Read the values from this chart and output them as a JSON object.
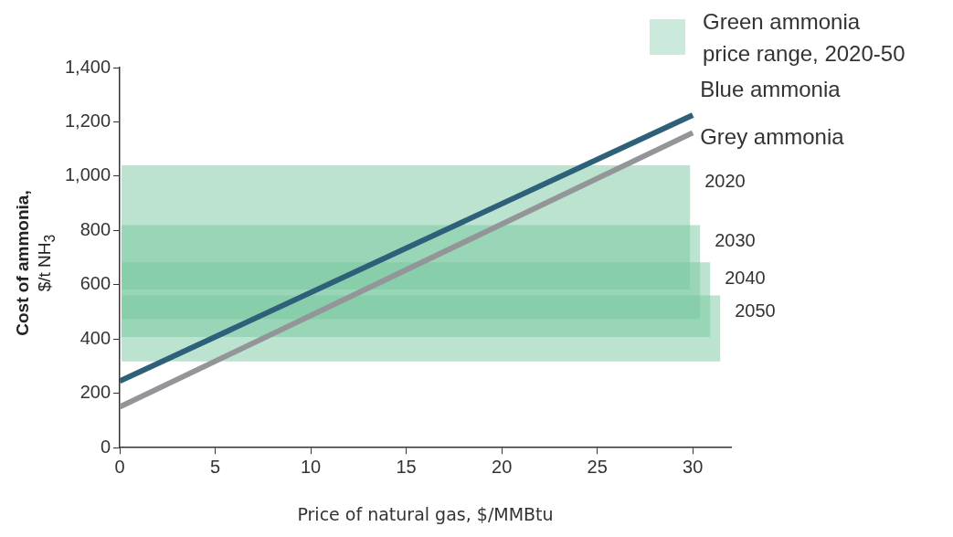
{
  "chart_data": {
    "type": "line",
    "xlabel": "Price of natural gas, $/MMBtu",
    "ylabel": "Cost of ammonia,\n$/t NH$_{3}$",
    "legend_title": "Green ammonia\nprice range, 2020-50",
    "legend": "top right",
    "x": [
      0,
      30
    ],
    "series": [
      {
        "name": "Blue ammonia",
        "color": "#2f6079",
        "values": [
          245,
          1225
        ]
      },
      {
        "name": "Grey ammonia",
        "color": "#939598",
        "values": [
          150,
          1160
        ]
      }
    ],
    "bands": [
      {
        "axis": "y",
        "from": 583,
        "to": 1040,
        "label": "2020",
        "color": "#78c8a0"
      },
      {
        "axis": "y",
        "from": 473,
        "to": 820,
        "label": "2030",
        "color": "#78c8a0"
      },
      {
        "axis": "y",
        "from": 408,
        "to": 683,
        "label": "2040",
        "color": "#78c8a0"
      },
      {
        "axis": "y",
        "from": 318,
        "to": 561,
        "label": "2050",
        "color": "#78c8a0"
      }
    ],
    "xlim": [
      0,
      32
    ],
    "xticks": [
      0,
      5,
      10,
      15,
      20,
      25,
      30
    ],
    "ylim": [
      0,
      1400
    ],
    "yticks": [
      {
        "value": 0,
        "label": "0"
      },
      {
        "value": 200,
        "label": "200"
      },
      {
        "value": 400,
        "label": "400"
      },
      {
        "value": 600,
        "label": "600"
      },
      {
        "value": 800,
        "label": "800"
      },
      {
        "value": 1000,
        "label": "1,000"
      },
      {
        "value": 1200,
        "label": "1,200"
      },
      {
        "value": 1400,
        "label": "1,400"
      }
    ],
    "grid": false,
    "line_style": "solid",
    "marker": "none"
  }
}
